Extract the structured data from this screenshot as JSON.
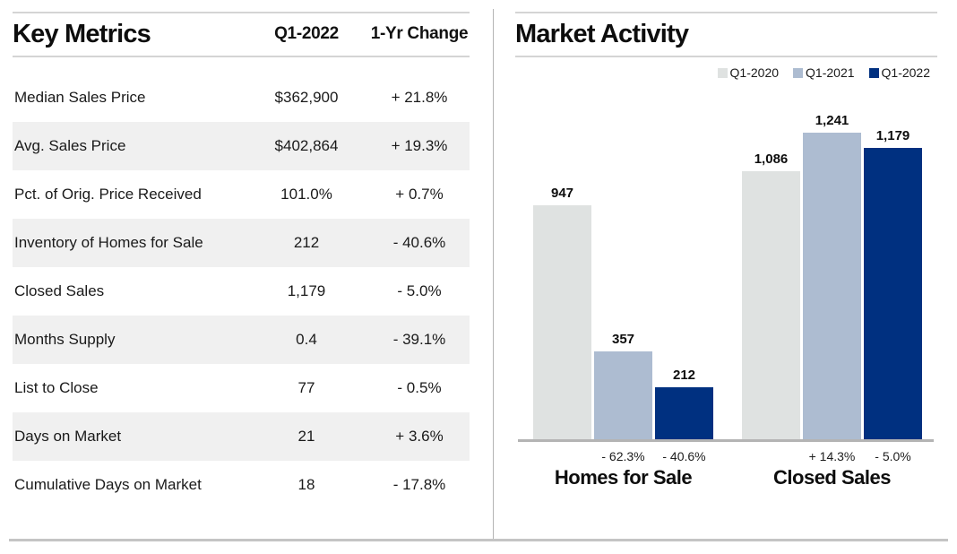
{
  "key_metrics": {
    "title": "Key Metrics",
    "columns": {
      "value": "Q1-2022",
      "change": "1-Yr Change"
    },
    "rows": [
      {
        "label": "Median Sales Price",
        "value": "$362,900",
        "change": "+ 21.8%"
      },
      {
        "label": "Avg. Sales Price",
        "value": "$402,864",
        "change": "+ 19.3%"
      },
      {
        "label": "Pct. of Orig. Price Received",
        "value": "101.0%",
        "change": "+ 0.7%"
      },
      {
        "label": "Inventory of Homes for Sale",
        "value": "212",
        "change": "- 40.6%"
      },
      {
        "label": "Closed Sales",
        "value": "1,179",
        "change": "- 5.0%"
      },
      {
        "label": "Months Supply",
        "value": "0.4",
        "change": "- 39.1%"
      },
      {
        "label": "List to Close",
        "value": "77",
        "change": "- 0.5%"
      },
      {
        "label": "Days on Market",
        "value": "21",
        "change": "+ 3.6%"
      },
      {
        "label": "Cumulative Days on Market",
        "value": "18",
        "change": "- 17.8%"
      }
    ]
  },
  "market_activity": {
    "title": "Market Activity"
  },
  "chart_data": {
    "type": "bar",
    "title": "Market Activity",
    "series": [
      "Q1-2020",
      "Q1-2021",
      "Q1-2022"
    ],
    "series_colors": [
      "#dfe2e1",
      "#adbcd1",
      "#003080"
    ],
    "categories": [
      "Homes for Sale",
      "Closed Sales"
    ],
    "groups": [
      {
        "category": "Homes for Sale",
        "values": [
          947,
          357,
          212
        ],
        "value_labels": [
          "947",
          "357",
          "212"
        ],
        "change_labels": [
          "",
          "- 62.3%",
          "- 40.6%"
        ]
      },
      {
        "category": "Closed Sales",
        "values": [
          1086,
          1241,
          1179
        ],
        "value_labels": [
          "1,086",
          "1,241",
          "1,179"
        ],
        "change_labels": [
          "",
          "+ 14.3%",
          "- 5.0%"
        ]
      }
    ],
    "ylim": [
      0,
      1241
    ],
    "grid": false,
    "legend_position": "top-right",
    "value_labels_shown": true
  },
  "colors": {
    "stripe": "#f0f0f0",
    "rule": "#d4d4d4",
    "axis": "#b4b4b4",
    "divider": "#b5b5b5",
    "text": "#111111"
  }
}
